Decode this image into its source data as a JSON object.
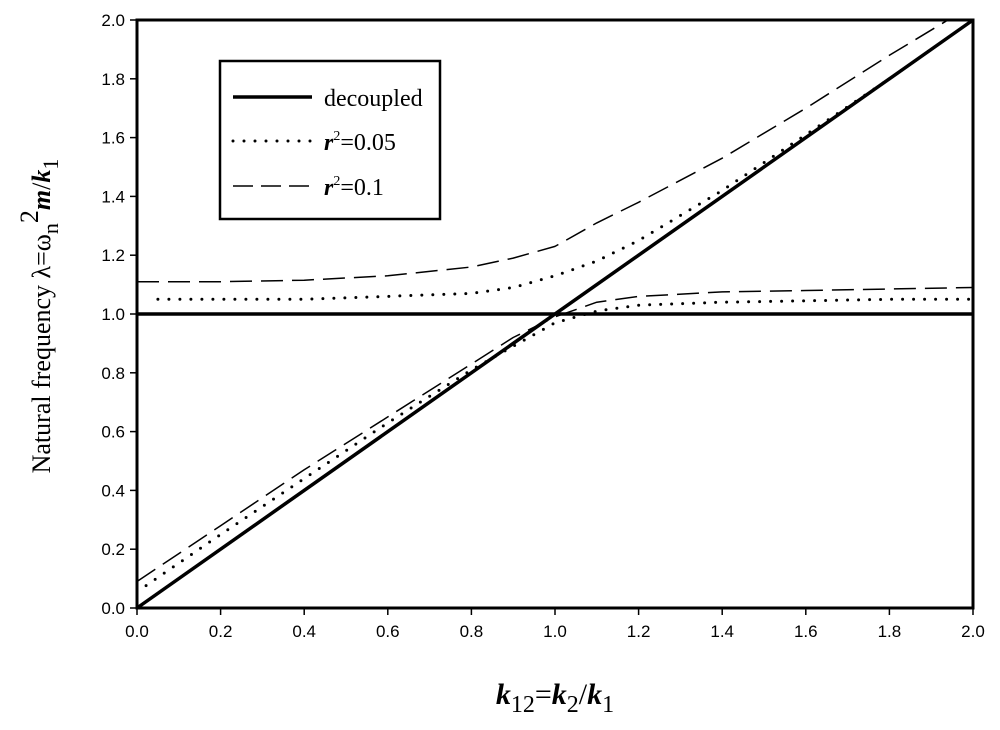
{
  "chart_data": {
    "type": "line",
    "xlabel": {
      "k1": "k",
      "s1": "12",
      "eq": "=",
      "k2": "k",
      "s2": "2",
      "sl": "/",
      "k3": "k",
      "s3": "1"
    },
    "ylabel": {
      "prefix": "Natural frequency  λ=ω",
      "sub": "n",
      "sup": "2",
      "m": "m",
      "sl": "/",
      "k": "k",
      "ksub": "1"
    },
    "xlim": [
      0.0,
      2.0
    ],
    "ylim": [
      0.0,
      2.0
    ],
    "xticks": [
      "0.0",
      "0.2",
      "0.4",
      "0.6",
      "0.8",
      "1.0",
      "1.2",
      "1.4",
      "1.6",
      "1.8",
      "2.0"
    ],
    "yticks": [
      "0.0",
      "0.2",
      "0.4",
      "0.6",
      "0.8",
      "1.0",
      "1.2",
      "1.4",
      "1.6",
      "1.8",
      "2.0"
    ],
    "grid": false,
    "legend": {
      "placement": "top-left",
      "entries": [
        {
          "id": "decoupled",
          "label": "decoupled",
          "style": "solid"
        },
        {
          "id": "r005",
          "sym": "r",
          "sup": "2",
          "value": "=0.05",
          "style": "dotted"
        },
        {
          "id": "r01",
          "sym": "r",
          "sup": "2",
          "value": "=0.1",
          "style": "dashed"
        }
      ]
    },
    "series": [
      {
        "id": "decoupled",
        "style": "solid",
        "segments": [
          {
            "x": [
              0.0,
              2.0
            ],
            "y": [
              0.0,
              2.0
            ]
          },
          {
            "x": [
              0.0,
              2.0
            ],
            "y": [
              1.0,
              1.0
            ]
          }
        ]
      },
      {
        "id": "r005",
        "style": "dotted",
        "segments": [
          {
            "x": [
              0.05,
              0.4,
              0.8,
              0.9,
              1.0,
              1.1,
              1.2,
              1.4,
              1.6,
              1.8,
              1.9
            ],
            "y": [
              1.05,
              1.05,
              1.07,
              1.09,
              1.13,
              1.18,
              1.25,
              1.42,
              1.61,
              1.8,
              1.9
            ]
          },
          {
            "x": [
              0.0,
              0.2,
              0.4,
              0.6,
              0.8,
              0.9,
              1.0,
              1.1,
              1.2,
              1.4,
              1.6,
              1.8,
              2.0
            ],
            "y": [
              0.055,
              0.25,
              0.44,
              0.63,
              0.81,
              0.89,
              0.97,
              1.01,
              1.03,
              1.04,
              1.045,
              1.05,
              1.05
            ]
          }
        ]
      },
      {
        "id": "r01",
        "style": "dashed",
        "segments": [
          {
            "x": [
              0.0,
              0.2,
              0.4,
              0.6,
              0.8,
              0.9,
              1.0,
              1.1,
              1.2,
              1.4,
              1.6,
              1.8,
              1.94
            ],
            "y": [
              1.11,
              1.11,
              1.115,
              1.13,
              1.16,
              1.19,
              1.23,
              1.31,
              1.38,
              1.53,
              1.7,
              1.88,
              2.0
            ]
          },
          {
            "x": [
              0.0,
              0.2,
              0.4,
              0.6,
              0.8,
              0.9,
              1.0,
              1.1,
              1.2,
              1.4,
              1.6,
              1.8,
              2.0
            ],
            "y": [
              0.09,
              0.28,
              0.47,
              0.65,
              0.83,
              0.92,
              0.99,
              1.04,
              1.06,
              1.075,
              1.08,
              1.085,
              1.09
            ]
          }
        ]
      }
    ]
  }
}
